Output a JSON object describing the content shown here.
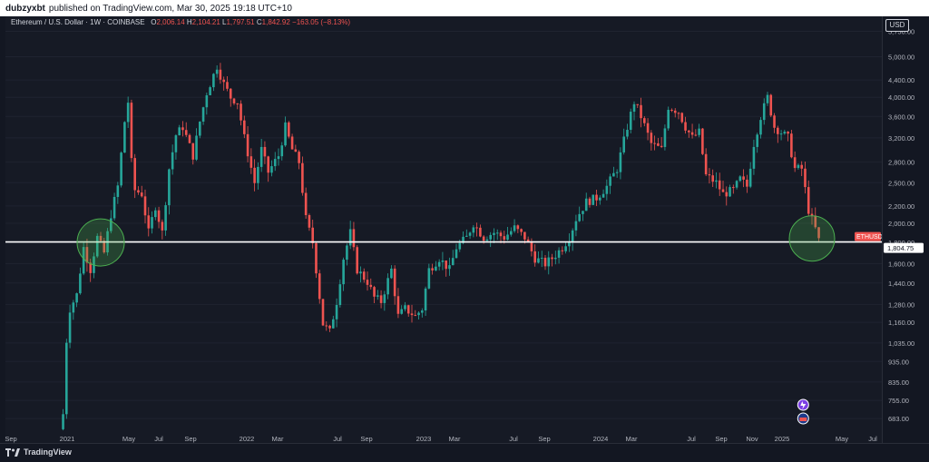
{
  "header": {
    "author": "dubzyxbt",
    "published_text": "published on TradingView.com, Mar 30, 2025 19:18 UTC+10"
  },
  "symbol": {
    "title": "Ethereum / U.S. Dollar · 1W · COINBASE",
    "open_label": "O",
    "open": "2,006.14",
    "high_label": "H",
    "high": "2,104.21",
    "low_label": "L",
    "low": "1,797.51",
    "close_label": "C",
    "close": "1,842.92",
    "change": "−163.05 (−8.13%)",
    "ticker_tag": "ETHUSD",
    "last_price": "1,804.75"
  },
  "price_scale": {
    "currency": "USD",
    "ticks": [
      "5,750.00",
      "5,000.00",
      "4,400.00",
      "4,000.00",
      "3,600.00",
      "3,200.00",
      "2,800.00",
      "2,500.00",
      "2,200.00",
      "2,000.00",
      "1,800.00",
      "1,600.00",
      "1,440.00",
      "1,280.00",
      "1,160.00",
      "1,035.00",
      "935.00",
      "835.00",
      "755.00",
      "683.00"
    ]
  },
  "time_scale": {
    "ticks": [
      "Sep",
      "2021",
      "May",
      "Jul",
      "Sep",
      "2022",
      "Mar",
      "Jul",
      "Sep",
      "2023",
      "Mar",
      "Jul",
      "Sep",
      "2024",
      "Mar",
      "Jul",
      "Sep",
      "Nov",
      "2025",
      "May",
      "Jul"
    ]
  },
  "brand": {
    "name": "TradingView"
  },
  "colors": {
    "up": "#26a69a",
    "down": "#ef5350",
    "background": "#161a25",
    "support_line": "#ffffff",
    "highlight_circle": "#4caf50"
  },
  "chart_data": {
    "type": "candlestick",
    "title": "Ethereum / U.S. Dollar · 1W · COINBASE",
    "scale": "log",
    "ylim": [
      660,
      6000
    ],
    "x_range": [
      "2020-09-01",
      "2025-07-31"
    ],
    "support_level": 1804.75,
    "anchors": [
      [
        "2020-12-28",
        700
      ],
      [
        "2021-01-04",
        1050
      ],
      [
        "2021-01-11",
        1250
      ],
      [
        "2021-01-25",
        1350
      ],
      [
        "2021-02-08",
        1750
      ],
      [
        "2021-02-22",
        1550
      ],
      [
        "2021-03-08",
        1850
      ],
      [
        "2021-03-22",
        1700
      ],
      [
        "2021-04-05",
        2100
      ],
      [
        "2021-04-19",
        2450
      ],
      [
        "2021-05-03",
        3500
      ],
      [
        "2021-05-10",
        3900
      ],
      [
        "2021-05-17",
        2800
      ],
      [
        "2021-05-24",
        2400
      ],
      [
        "2021-06-07",
        2350
      ],
      [
        "2021-06-21",
        1900
      ],
      [
        "2021-07-05",
        2200
      ],
      [
        "2021-07-19",
        1900
      ],
      [
        "2021-08-02",
        2700
      ],
      [
        "2021-08-16",
        3250
      ],
      [
        "2021-08-30",
        3400
      ],
      [
        "2021-09-20",
        2900
      ],
      [
        "2021-10-04",
        3500
      ],
      [
        "2021-10-18",
        4100
      ],
      [
        "2021-11-08",
        4750
      ],
      [
        "2021-11-22",
        4300
      ],
      [
        "2021-12-06",
        4000
      ],
      [
        "2021-12-20",
        3900
      ],
      [
        "2022-01-03",
        3200
      ],
      [
        "2022-01-24",
        2500
      ],
      [
        "2022-02-07",
        3000
      ],
      [
        "2022-02-21",
        2650
      ],
      [
        "2022-03-14",
        2900
      ],
      [
        "2022-03-28",
        3400
      ],
      [
        "2022-04-11",
        3000
      ],
      [
        "2022-04-25",
        2800
      ],
      [
        "2022-05-09",
        2050
      ],
      [
        "2022-05-23",
        1800
      ],
      [
        "2022-06-13",
        1150
      ],
      [
        "2022-06-27",
        1100
      ],
      [
        "2022-07-11",
        1300
      ],
      [
        "2022-07-25",
        1650
      ],
      [
        "2022-08-08",
        1900
      ],
      [
        "2022-08-22",
        1550
      ],
      [
        "2022-09-12",
        1450
      ],
      [
        "2022-09-26",
        1330
      ],
      [
        "2022-10-10",
        1300
      ],
      [
        "2022-10-31",
        1550
      ],
      [
        "2022-11-14",
        1200
      ],
      [
        "2022-11-28",
        1250
      ],
      [
        "2022-12-19",
        1200
      ],
      [
        "2023-01-02",
        1250
      ],
      [
        "2023-01-16",
        1550
      ],
      [
        "2023-02-06",
        1650
      ],
      [
        "2023-02-27",
        1550
      ],
      [
        "2023-03-13",
        1750
      ],
      [
        "2023-04-03",
        1850
      ],
      [
        "2023-04-17",
        2000
      ],
      [
        "2023-05-08",
        1850
      ],
      [
        "2023-05-29",
        1900
      ],
      [
        "2023-06-19",
        1850
      ],
      [
        "2023-07-10",
        1950
      ],
      [
        "2023-07-31",
        1850
      ],
      [
        "2023-08-21",
        1650
      ],
      [
        "2023-09-11",
        1600
      ],
      [
        "2023-09-25",
        1650
      ],
      [
        "2023-10-16",
        1750
      ],
      [
        "2023-10-30",
        1850
      ],
      [
        "2023-11-13",
        2050
      ],
      [
        "2023-12-04",
        2250
      ],
      [
        "2023-12-25",
        2300
      ],
      [
        "2024-01-15",
        2450
      ],
      [
        "2024-02-05",
        2700
      ],
      [
        "2024-02-26",
        3400
      ],
      [
        "2024-03-11",
        3900
      ],
      [
        "2024-03-25",
        3600
      ],
      [
        "2024-04-15",
        3100
      ],
      [
        "2024-05-06",
        3000
      ],
      [
        "2024-05-20",
        3800
      ],
      [
        "2024-06-10",
        3700
      ],
      [
        "2024-06-24",
        3400
      ],
      [
        "2024-07-08",
        3200
      ],
      [
        "2024-07-22",
        3300
      ],
      [
        "2024-08-05",
        2600
      ],
      [
        "2024-08-26",
        2500
      ],
      [
        "2024-09-09",
        2350
      ],
      [
        "2024-09-30",
        2400
      ],
      [
        "2024-10-14",
        2550
      ],
      [
        "2024-10-28",
        2450
      ],
      [
        "2024-11-11",
        3100
      ],
      [
        "2024-11-25",
        3600
      ],
      [
        "2024-12-09",
        4000
      ],
      [
        "2024-12-23",
        3400
      ],
      [
        "2025-01-06",
        3300
      ],
      [
        "2025-01-20",
        3200
      ],
      [
        "2025-02-03",
        2700
      ],
      [
        "2025-02-17",
        2700
      ],
      [
        "2025-03-03",
        2150
      ],
      [
        "2025-03-24",
        1842.92
      ]
    ]
  }
}
